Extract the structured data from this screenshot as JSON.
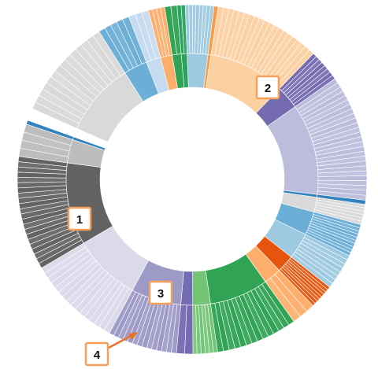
{
  "chart_data": {
    "type": "sunburst",
    "title": "",
    "rings": [
      "inner",
      "outer"
    ],
    "groups": [
      {
        "color": "#2ca25f",
        "inner": 2,
        "outer": 2,
        "leaves": 2
      },
      {
        "color": "#9ecae1",
        "inner": 7,
        "outer": 7,
        "leaves": 8
      },
      {
        "color": "#f99b45",
        "inner": 1,
        "outer": 1,
        "leaves": 1
      },
      {
        "color": "#fdd0a2",
        "inner": 26,
        "outer": 26,
        "leaves": 20
      },
      {
        "color": "#756bb1",
        "inner": 8,
        "outer": 8,
        "leaves": 8
      },
      {
        "color": "#bcbddc",
        "inner": 31,
        "outer": 31,
        "leaves": 26
      },
      {
        "color": "#3182bd",
        "inner": 1,
        "outer": 1,
        "leaves": 1
      },
      {
        "color": "#d9d9d9",
        "inner": 5,
        "outer": 5,
        "leaves": 6
      },
      {
        "color": "#6baed6",
        "inner": 8,
        "outer": 8,
        "leaves": 10
      },
      {
        "color": "#9ecae1",
        "inner": 9,
        "outer": 9,
        "leaves": 8
      },
      {
        "color": "#e6550d",
        "inner": 6,
        "outer": 6,
        "leaves": 8
      },
      {
        "color": "#fdae6b",
        "inner": 6,
        "outer": 6,
        "leaves": 3
      },
      {
        "color": "#31a354",
        "inner": 20,
        "outer": 20,
        "leaves": 14
      },
      {
        "color": "#74c476",
        "inner": 6,
        "outer": 6,
        "leaves": 6
      },
      {
        "color": "#756bb1",
        "inner": 4,
        "outer": 4,
        "leaves": 2
      },
      {
        "color": "#9e9ac8",
        "inner": 17,
        "outer": 17,
        "leaves": 14
      },
      {
        "color": "#dadaeb",
        "inner": 23,
        "outer": 23,
        "leaves": 16
      },
      {
        "color": "#636363",
        "inner": 28,
        "outer": 28,
        "leaves": 22
      },
      {
        "color": "#bdbdbd",
        "inner": 8,
        "outer": 8,
        "leaves": 4
      },
      {
        "color": "#3182bd",
        "inner": 1,
        "outer": 1,
        "leaves": 1
      },
      {
        "color": "#ffffff",
        "inner": 3,
        "outer": 3,
        "leaves": 1
      },
      {
        "color": "#d9d9d9",
        "inner": 25,
        "outer": 25,
        "leaves": 14
      },
      {
        "color": "#6baed6",
        "inner": 8,
        "outer": 8,
        "leaves": 5
      },
      {
        "color": "#c6dbef",
        "inner": 5,
        "outer": 5,
        "leaves": 3
      },
      {
        "color": "#fdae6b",
        "inner": 4,
        "outer": 4,
        "leaves": 4
      },
      {
        "color": "#31a354",
        "inner": 3,
        "outer": 3,
        "leaves": 2
      }
    ],
    "start_angle_deg": -5
  },
  "callouts": [
    {
      "label": "1"
    },
    {
      "label": "2"
    },
    {
      "label": "3"
    },
    {
      "label": "4"
    }
  ],
  "colors": {
    "callout_border": "#f5a05a",
    "arrow": "#e8742a"
  }
}
